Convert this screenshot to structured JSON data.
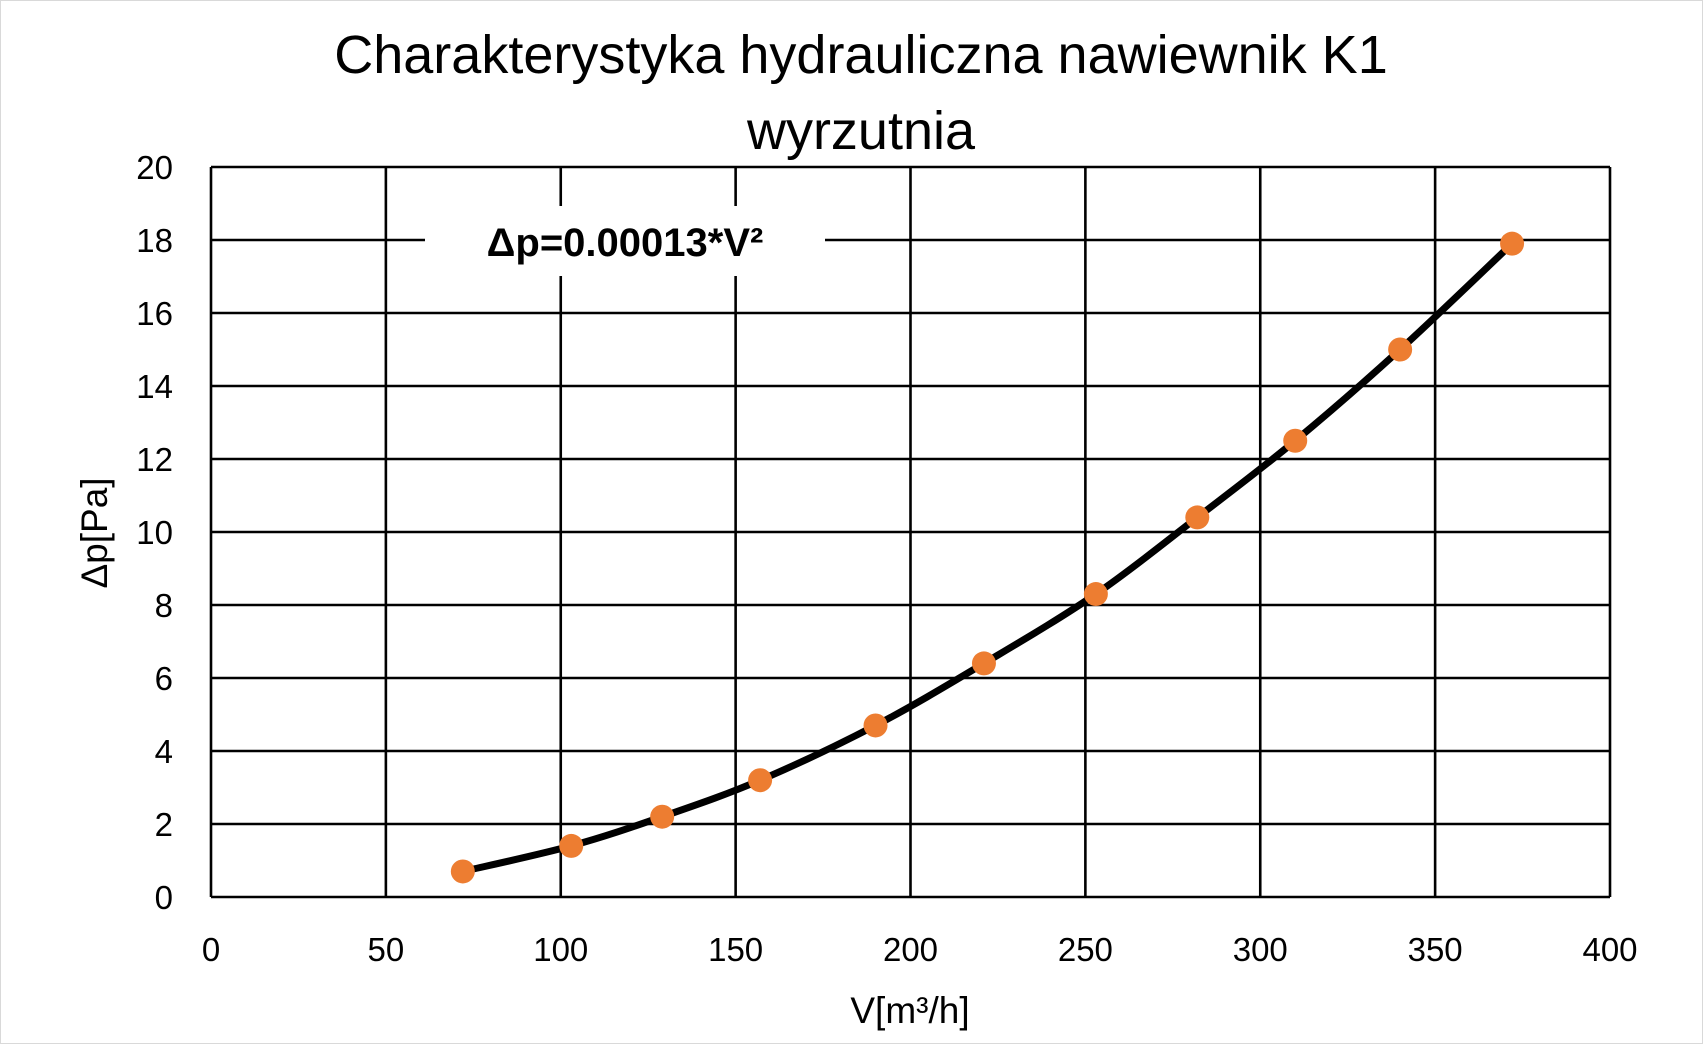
{
  "chart_data": {
    "type": "scatter",
    "title_line1": "Charakterystyka hydrauliczna nawiewnik K1",
    "title_line2": "wyrzutnia",
    "xlabel": "V[m³/h]",
    "ylabel": "Δp[Pa]",
    "xlim": [
      0,
      400
    ],
    "ylim": [
      0,
      20
    ],
    "x_ticks": [
      0,
      50,
      100,
      150,
      200,
      250,
      300,
      350,
      400
    ],
    "y_ticks": [
      0,
      2,
      4,
      6,
      8,
      10,
      12,
      14,
      16,
      18,
      20
    ],
    "grid": true,
    "annotation": "Δp=0.00013*V²",
    "series": [
      {
        "marker_color": "#ED7D31",
        "line_color": "#000000",
        "x": [
          72,
          103,
          129,
          157,
          190,
          221,
          253,
          282,
          310,
          340,
          372
        ],
        "y": [
          0.7,
          1.4,
          2.2,
          3.2,
          4.7,
          6.4,
          8.3,
          10.4,
          12.5,
          15.0,
          17.9
        ]
      }
    ]
  }
}
